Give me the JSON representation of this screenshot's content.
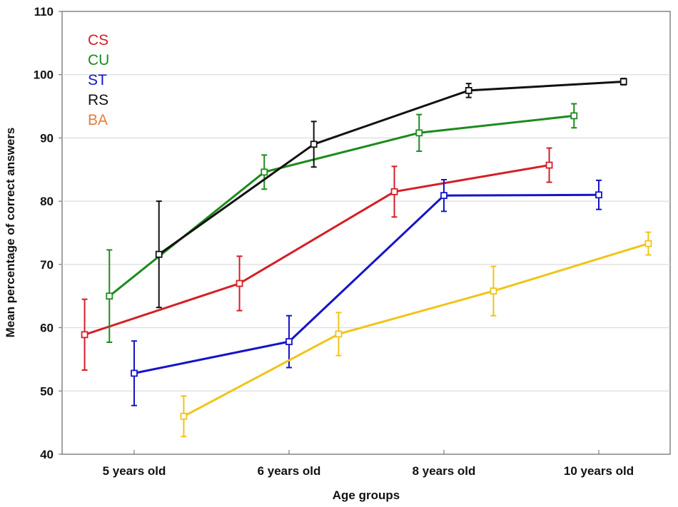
{
  "chart_data": {
    "type": "line",
    "title": "",
    "xlabel": "Age groups",
    "ylabel": "Mean percentage of correct answers",
    "categories": [
      "5  years old",
      "6  years old",
      "8  years old",
      "10  years old"
    ],
    "ylim": [
      40,
      110
    ],
    "yticks": [
      40,
      50,
      60,
      70,
      80,
      90,
      100,
      110
    ],
    "grid": true,
    "legend_position": "top-left",
    "series": [
      {
        "name": "CS",
        "color": "#d41f26",
        "offset": -0.32,
        "values": [
          58.9,
          67.0,
          81.5,
          85.7
        ],
        "errors": [
          5.6,
          4.3,
          4.0,
          2.7
        ]
      },
      {
        "name": "CU",
        "color": "#1e8a1e",
        "offset": -0.16,
        "values": [
          65.0,
          84.6,
          90.8,
          93.5
        ],
        "errors": [
          7.3,
          2.7,
          2.9,
          1.9
        ]
      },
      {
        "name": "ST",
        "color": "#1414c8",
        "offset": 0.0,
        "values": [
          52.8,
          57.8,
          80.9,
          81.0
        ],
        "errors": [
          5.1,
          4.1,
          2.5,
          2.3
        ]
      },
      {
        "name": "RS",
        "color": "#111111",
        "offset": 0.16,
        "values": [
          71.6,
          89.0,
          97.5,
          98.9
        ],
        "errors": [
          8.4,
          3.6,
          1.1,
          0.5
        ]
      },
      {
        "name": "BA",
        "color": "#f0c419",
        "legend_color": "#e87a3c",
        "offset": 0.32,
        "values": [
          46.0,
          59.0,
          65.8,
          73.3
        ],
        "errors": [
          3.2,
          3.4,
          3.9,
          1.8
        ]
      }
    ]
  }
}
